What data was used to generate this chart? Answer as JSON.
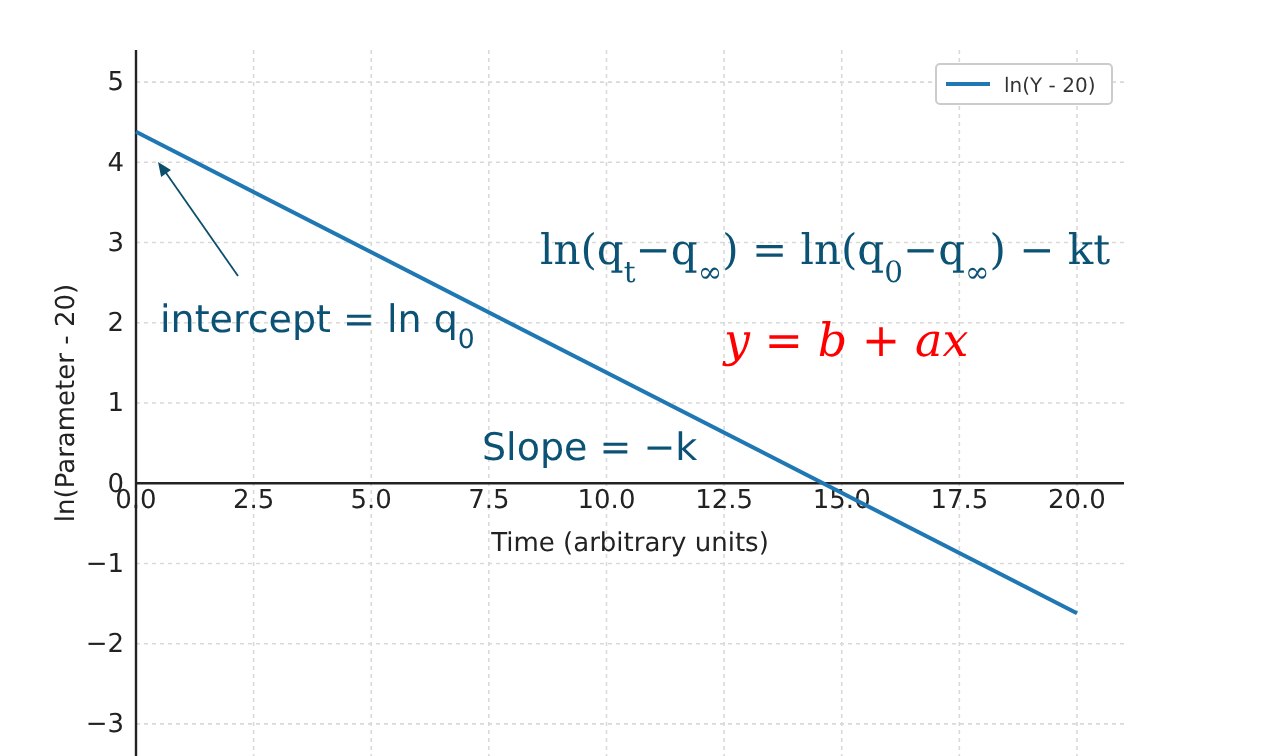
{
  "chart_data": {
    "type": "line",
    "xlabel": "Time (arbitrary units)",
    "ylabel": "ln(Parameter - 20)",
    "x": [
      0,
      20
    ],
    "series": [
      {
        "name": "ln(Y - 20)",
        "color": "#1f77b4",
        "values": [
          4.38,
          -1.62
        ]
      }
    ],
    "xlim": [
      0,
      21
    ],
    "ylim": [
      -3.4,
      5.4
    ],
    "xticks": [
      {
        "value": 0,
        "label": "0.0"
      },
      {
        "value": 2.5,
        "label": "2.5"
      },
      {
        "value": 5,
        "label": "5.0"
      },
      {
        "value": 7.5,
        "label": "7.5"
      },
      {
        "value": 10,
        "label": "10.0"
      },
      {
        "value": 12.5,
        "label": "12.5"
      },
      {
        "value": 15,
        "label": "15.0"
      },
      {
        "value": 17.5,
        "label": "17.5"
      },
      {
        "value": 20,
        "label": "20.0"
      }
    ],
    "yticks": [
      {
        "value": -3,
        "label": "−3"
      },
      {
        "value": -2,
        "label": "−2"
      },
      {
        "value": -1,
        "label": "−1"
      },
      0,
      1,
      2,
      3,
      4,
      5
    ],
    "grid": true,
    "legend": "top right",
    "marker": "none",
    "line_style": "solid",
    "annotations": [
      "intercept = ln q$_{0}$",
      "ln(q$_{t}$−q$_{∞}$) = ln(q$_{0}$−q$_{∞}$) − kt",
      "y = b + ax",
      "Slope = −k"
    ]
  }
}
